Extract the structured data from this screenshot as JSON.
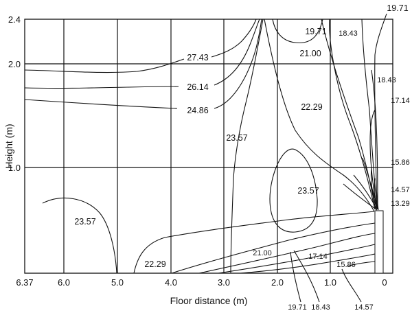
{
  "chart_data": {
    "type": "contour",
    "xlabel": "Floor distance (m)",
    "ylabel": "Height (m)",
    "x_ticks": [
      "6.37",
      "6.0",
      "5.0",
      "4.0",
      "3.0",
      "2.0",
      "1.0",
      "0"
    ],
    "y_ticks": [
      "2.4",
      "2.0",
      "1.0"
    ],
    "xlim": [
      6.37,
      0
    ],
    "ylim": [
      0,
      2.4
    ],
    "x_reversed": true,
    "grid": true,
    "vertical_gridlines_at": [
      6.0,
      5.0,
      4.0,
      3.0,
      2.0,
      1.0
    ],
    "horizontal_gridlines_at": [
      2.0,
      1.0
    ],
    "contour_levels": [
      "13.29",
      "14.57",
      "15.86",
      "17.14",
      "18.43",
      "19.71",
      "21.00",
      "22.29",
      "23.57",
      "24.86",
      "26.14",
      "27.43"
    ],
    "annotations": [
      {
        "text": "27.43",
        "x": 3.55,
        "y": 2.07
      },
      {
        "text": "26.14",
        "x": 3.55,
        "y": 1.79
      },
      {
        "text": "24.86",
        "x": 3.55,
        "y": 1.57
      },
      {
        "text": "19.71",
        "x": 1.3,
        "y": 2.34
      },
      {
        "text": "18.43",
        "x": 0.6,
        "y": 2.3
      },
      {
        "text": "19.71",
        "x": -0.1,
        "y": 2.52
      },
      {
        "text": "21.00",
        "x": 1.05,
        "y": 2.1
      },
      {
        "text": "18.43",
        "x": 0.15,
        "y": 1.87
      },
      {
        "text": "17.14",
        "x": -0.05,
        "y": 1.58
      },
      {
        "text": "22.29",
        "x": 1.3,
        "y": 1.56
      },
      {
        "text": "23.57",
        "x": 2.6,
        "y": 1.35
      },
      {
        "text": "15.86",
        "x": 0.0,
        "y": 1.11
      },
      {
        "text": "23.57",
        "x": 1.25,
        "y": 0.76
      },
      {
        "text": "14.57",
        "x": 0.0,
        "y": 0.78
      },
      {
        "text": "13.29",
        "x": 0.0,
        "y": 0.66
      },
      {
        "text": "23.57",
        "x": 5.55,
        "y": 0.48
      },
      {
        "text": "22.29",
        "x": 3.95,
        "y": 0.07
      },
      {
        "text": "21.00",
        "x": 1.85,
        "y": 0.19
      },
      {
        "text": "17.14",
        "x": 1.1,
        "y": 0.14
      },
      {
        "text": "15.86",
        "x": 0.5,
        "y": 0.07
      },
      {
        "text": "19.71",
        "x": 1.4,
        "y": -0.38
      },
      {
        "text": "18.43",
        "x": 0.95,
        "y": -0.38
      },
      {
        "text": "14.57",
        "x": 0.35,
        "y": -0.38
      }
    ]
  }
}
